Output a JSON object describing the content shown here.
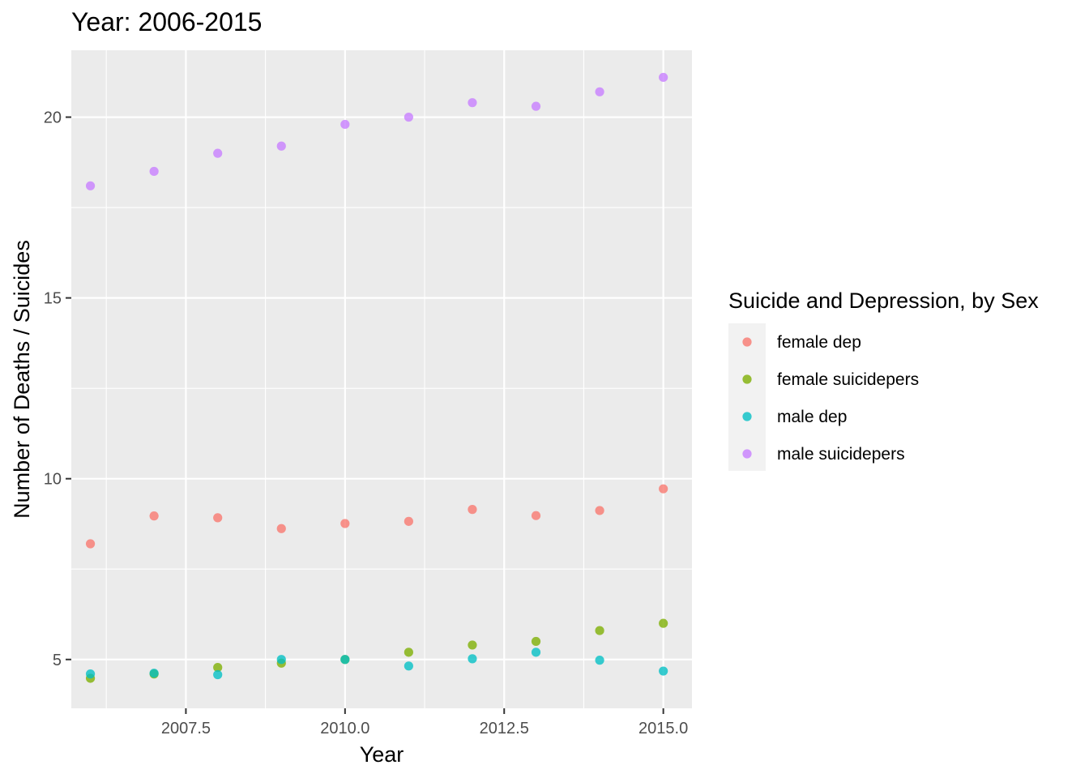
{
  "chart_data": {
    "type": "scatter",
    "title": "Year: 2006-2015",
    "xlabel": "Year",
    "ylabel": "Number of Deaths / Suicides",
    "xlim": [
      2005.7,
      2015.45
    ],
    "ylim": [
      3.65,
      21.85
    ],
    "x_ticks": [
      2007.5,
      2010.0,
      2012.5,
      2015.0
    ],
    "x_tick_labels": [
      "2007.5",
      "2010.0",
      "2012.5",
      "2015.0"
    ],
    "y_ticks": [
      5,
      10,
      15,
      20
    ],
    "y_tick_labels": [
      "5",
      "10",
      "15",
      "20"
    ],
    "grid": true,
    "legend": {
      "title": "Suicide and Depression, by Sex",
      "placement": "right"
    },
    "series": [
      {
        "name": "female dep",
        "color": "#F8766D",
        "x": [
          2006,
          2007,
          2008,
          2009,
          2010,
          2011,
          2012,
          2013,
          2014,
          2015
        ],
        "y": [
          8.2,
          8.97,
          8.92,
          8.62,
          8.76,
          8.82,
          9.15,
          8.98,
          9.12,
          9.72
        ]
      },
      {
        "name": "female suicidepers",
        "color": "#7CAE00",
        "x": [
          2006,
          2007,
          2008,
          2009,
          2010,
          2011,
          2012,
          2013,
          2014,
          2015
        ],
        "y": [
          4.48,
          4.6,
          4.78,
          4.9,
          5.0,
          5.2,
          5.4,
          5.5,
          5.8,
          6.0
        ]
      },
      {
        "name": "male dep",
        "color": "#00BFC4",
        "x": [
          2006,
          2007,
          2008,
          2009,
          2010,
          2011,
          2012,
          2013,
          2014,
          2015
        ],
        "y": [
          4.6,
          4.62,
          4.58,
          5.0,
          5.0,
          4.82,
          5.02,
          5.2,
          4.98,
          4.68
        ]
      },
      {
        "name": "male suicidepers",
        "color": "#C77CFF",
        "x": [
          2006,
          2007,
          2008,
          2009,
          2010,
          2011,
          2012,
          2013,
          2014,
          2015
        ],
        "y": [
          18.1,
          18.5,
          19.0,
          19.2,
          19.8,
          20.0,
          20.4,
          20.3,
          20.7,
          21.1
        ]
      }
    ]
  }
}
